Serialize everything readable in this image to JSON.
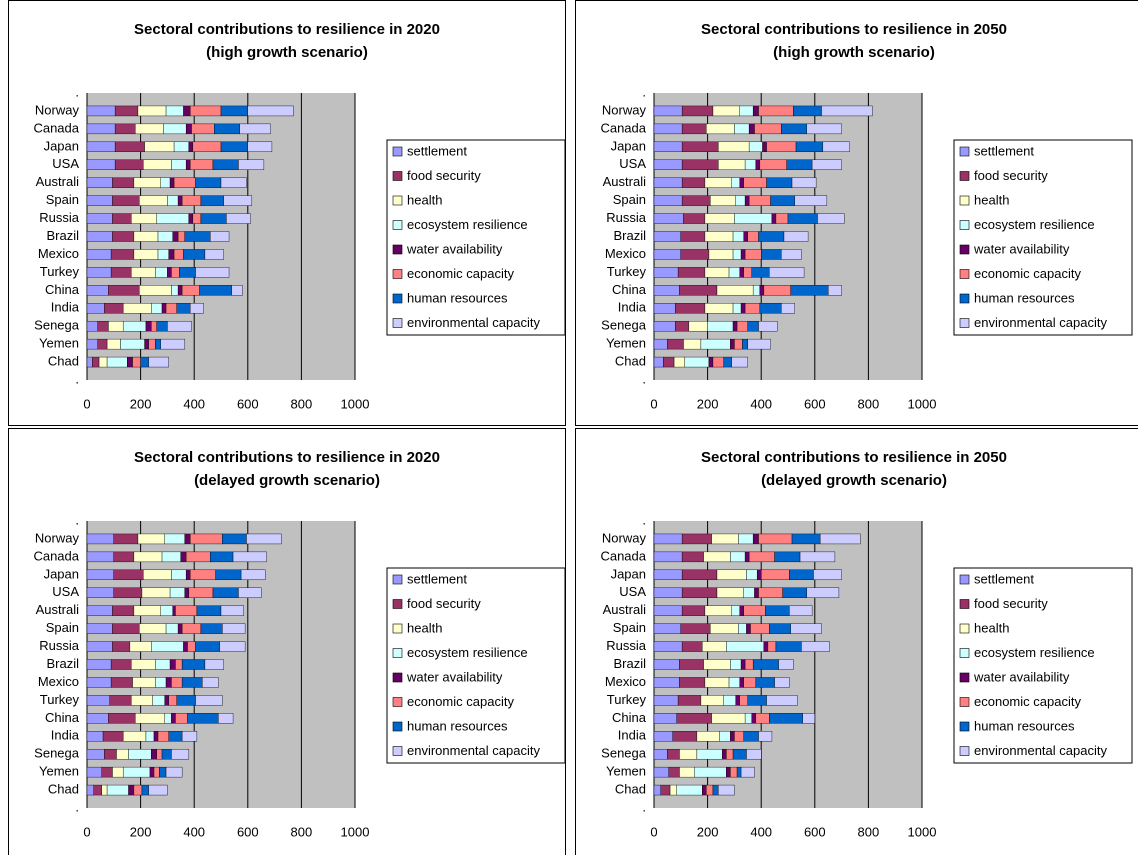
{
  "chart_data": [
    {
      "type": "bar",
      "orientation": "horizontal",
      "stacked": true,
      "title": "Sectoral contributions to resilience in 2020",
      "subtitle": "(high growth scenario)",
      "categories": [
        ".",
        "Norway",
        "Canada",
        "Japan",
        "USA",
        "Australi",
        "Spain",
        "Russia",
        "Brazil",
        "Mexico",
        "Turkey",
        "China",
        "India",
        "Senega",
        "Yemen",
        "Chad",
        "."
      ],
      "xlim": [
        0,
        1000
      ],
      "xticks": [
        0,
        200,
        400,
        600,
        800,
        1000
      ],
      "grid": true,
      "legend": "right",
      "series": [
        {
          "name": "settlement",
          "color": "#9999ff",
          "values": [
            null,
            105,
            105,
            105,
            105,
            95,
            95,
            95,
            95,
            90,
            90,
            80,
            65,
            40,
            40,
            20,
            null
          ]
        },
        {
          "name": "food security",
          "color": "#993366",
          "values": [
            null,
            85,
            75,
            110,
            105,
            80,
            100,
            70,
            80,
            85,
            75,
            115,
            70,
            40,
            35,
            25,
            null
          ]
        },
        {
          "name": "health",
          "color": "#ffffcc",
          "values": [
            null,
            105,
            105,
            110,
            105,
            100,
            105,
            95,
            90,
            90,
            90,
            120,
            105,
            55,
            50,
            30,
            null
          ]
        },
        {
          "name": "ecosystem resilience",
          "color": "#ccffff",
          "values": [
            null,
            65,
            85,
            55,
            55,
            35,
            40,
            120,
            55,
            40,
            45,
            25,
            40,
            85,
            90,
            75,
            null
          ]
        },
        {
          "name": "water availability",
          "color": "#660066",
          "values": [
            null,
            25,
            20,
            15,
            15,
            15,
            15,
            15,
            20,
            20,
            15,
            15,
            15,
            20,
            15,
            20,
            null
          ]
        },
        {
          "name": "economic capacity",
          "color": "#ff8080",
          "values": [
            null,
            115,
            85,
            105,
            85,
            80,
            70,
            30,
            25,
            35,
            30,
            65,
            40,
            20,
            25,
            30,
            null
          ]
        },
        {
          "name": "human resources",
          "color": "#0066cc",
          "values": [
            null,
            100,
            95,
            100,
            95,
            95,
            85,
            95,
            95,
            80,
            60,
            120,
            50,
            40,
            20,
            30,
            null
          ]
        },
        {
          "name": "environmental capacity",
          "color": "#ccccff",
          "values": [
            null,
            170,
            115,
            90,
            95,
            95,
            105,
            90,
            70,
            70,
            125,
            40,
            50,
            90,
            90,
            75,
            null
          ]
        }
      ]
    },
    {
      "type": "bar",
      "orientation": "horizontal",
      "stacked": true,
      "title": "Sectoral contributions to resilience in 2050",
      "subtitle": "(high growth scenario)",
      "categories": [
        ".",
        "Norway",
        "Canada",
        "Japan",
        "USA",
        "Australi",
        "Spain",
        "Russia",
        "Brazil",
        "Mexico",
        "Turkey",
        "China",
        "India",
        "Senega",
        "Yemen",
        "Chad",
        "."
      ],
      "xlim": [
        0,
        1000
      ],
      "xticks": [
        0,
        200,
        400,
        600,
        800,
        1000
      ],
      "grid": true,
      "legend": "right",
      "series": [
        {
          "name": "settlement",
          "color": "#9999ff",
          "values": [
            null,
            105,
            105,
            105,
            105,
            105,
            105,
            110,
            100,
            100,
            90,
            95,
            80,
            80,
            50,
            35,
            null
          ]
        },
        {
          "name": "food security",
          "color": "#993366",
          "values": [
            null,
            115,
            90,
            135,
            135,
            85,
            105,
            80,
            90,
            105,
            100,
            140,
            110,
            50,
            60,
            40,
            null
          ]
        },
        {
          "name": "health",
          "color": "#ffffcc",
          "values": [
            null,
            100,
            105,
            115,
            100,
            100,
            95,
            110,
            105,
            90,
            90,
            135,
            105,
            70,
            65,
            40,
            null
          ]
        },
        {
          "name": "ecosystem resilience",
          "color": "#ccffff",
          "values": [
            null,
            50,
            55,
            50,
            40,
            30,
            35,
            140,
            40,
            30,
            40,
            25,
            30,
            95,
            110,
            90,
            null
          ]
        },
        {
          "name": "water availability",
          "color": "#660066",
          "values": [
            null,
            20,
            20,
            15,
            15,
            15,
            15,
            15,
            15,
            15,
            15,
            15,
            15,
            15,
            15,
            15,
            null
          ]
        },
        {
          "name": "economic capacity",
          "color": "#ff8080",
          "values": [
            null,
            130,
            100,
            110,
            100,
            85,
            80,
            45,
            40,
            60,
            30,
            100,
            55,
            40,
            30,
            40,
            null
          ]
        },
        {
          "name": "human resources",
          "color": "#0066cc",
          "values": [
            null,
            105,
            95,
            100,
            95,
            95,
            90,
            110,
            95,
            75,
            65,
            140,
            80,
            40,
            20,
            30,
            null
          ]
        },
        {
          "name": "environmental capacity",
          "color": "#ccccff",
          "values": [
            null,
            190,
            130,
            100,
            110,
            90,
            120,
            100,
            90,
            75,
            130,
            50,
            50,
            70,
            85,
            60,
            null
          ]
        }
      ]
    },
    {
      "type": "bar",
      "orientation": "horizontal",
      "stacked": true,
      "title": "Sectoral contributions to resilience in 2020",
      "subtitle": "(delayed growth scenario)",
      "categories": [
        ".",
        "Norway",
        "Canada",
        "Japan",
        "USA",
        "Australi",
        "Spain",
        "Russia",
        "Brazil",
        "Mexico",
        "Turkey",
        "China",
        "India",
        "Senega",
        "Yemen",
        "Chad",
        "."
      ],
      "xlim": [
        0,
        1000
      ],
      "xticks": [
        0,
        200,
        400,
        600,
        800,
        1000
      ],
      "grid": true,
      "legend": "right",
      "series": [
        {
          "name": "settlement",
          "color": "#9999ff",
          "values": [
            null,
            100,
            100,
            100,
            100,
            95,
            95,
            95,
            90,
            90,
            85,
            80,
            60,
            65,
            55,
            25,
            null
          ]
        },
        {
          "name": "food security",
          "color": "#993366",
          "values": [
            null,
            90,
            75,
            110,
            105,
            80,
            100,
            65,
            75,
            80,
            80,
            100,
            75,
            45,
            40,
            30,
            null
          ]
        },
        {
          "name": "health",
          "color": "#ffffcc",
          "values": [
            null,
            100,
            105,
            105,
            105,
            100,
            100,
            80,
            90,
            85,
            80,
            110,
            85,
            45,
            40,
            20,
            null
          ]
        },
        {
          "name": "ecosystem resilience",
          "color": "#ccffff",
          "values": [
            null,
            75,
            70,
            55,
            55,
            45,
            45,
            120,
            55,
            40,
            45,
            25,
            30,
            85,
            100,
            80,
            null
          ]
        },
        {
          "name": "water availability",
          "color": "#660066",
          "values": [
            null,
            20,
            20,
            15,
            15,
            10,
            15,
            15,
            20,
            20,
            15,
            15,
            15,
            20,
            15,
            20,
            null
          ]
        },
        {
          "name": "economic capacity",
          "color": "#ff8080",
          "values": [
            null,
            120,
            90,
            95,
            90,
            80,
            70,
            30,
            25,
            40,
            30,
            45,
            40,
            20,
            20,
            30,
            null
          ]
        },
        {
          "name": "human resources",
          "color": "#0066cc",
          "values": [
            null,
            90,
            85,
            95,
            95,
            90,
            80,
            90,
            85,
            75,
            70,
            115,
            50,
            35,
            25,
            25,
            null
          ]
        },
        {
          "name": "environmental capacity",
          "color": "#ccccff",
          "values": [
            null,
            130,
            125,
            90,
            85,
            85,
            85,
            95,
            70,
            60,
            100,
            55,
            55,
            65,
            60,
            70,
            null
          ]
        }
      ]
    },
    {
      "type": "bar",
      "orientation": "horizontal",
      "stacked": true,
      "title": "Sectoral contributions to resilience in 2050",
      "subtitle": "(delayed growth scenario)",
      "categories": [
        ".",
        "Norway",
        "Canada",
        "Japan",
        "USA",
        "Australi",
        "Spain",
        "Russia",
        "Brazil",
        "Mexico",
        "Turkey",
        "China",
        "India",
        "Senega",
        "Yemen",
        "Chad",
        "."
      ],
      "xlim": [
        0,
        1000
      ],
      "xticks": [
        0,
        200,
        400,
        600,
        800,
        1000
      ],
      "grid": true,
      "legend": "right",
      "series": [
        {
          "name": "settlement",
          "color": "#9999ff",
          "values": [
            null,
            105,
            105,
            105,
            105,
            105,
            100,
            105,
            95,
            95,
            90,
            85,
            70,
            50,
            55,
            25,
            null
          ]
        },
        {
          "name": "food security",
          "color": "#993366",
          "values": [
            null,
            110,
            80,
            130,
            130,
            85,
            110,
            75,
            90,
            95,
            85,
            130,
            90,
            45,
            40,
            35,
            null
          ]
        },
        {
          "name": "health",
          "color": "#ffffcc",
          "values": [
            null,
            100,
            100,
            110,
            100,
            100,
            105,
            90,
            100,
            90,
            85,
            125,
            85,
            65,
            55,
            25,
            null
          ]
        },
        {
          "name": "ecosystem resilience",
          "color": "#ccffff",
          "values": [
            null,
            55,
            55,
            40,
            40,
            30,
            30,
            140,
            40,
            40,
            45,
            25,
            40,
            95,
            120,
            95,
            null
          ]
        },
        {
          "name": "water availability",
          "color": "#660066",
          "values": [
            null,
            20,
            15,
            15,
            15,
            15,
            15,
            15,
            15,
            15,
            15,
            15,
            15,
            15,
            15,
            15,
            null
          ]
        },
        {
          "name": "economic capacity",
          "color": "#ff8080",
          "values": [
            null,
            125,
            95,
            105,
            90,
            80,
            70,
            30,
            30,
            45,
            30,
            50,
            35,
            25,
            25,
            25,
            null
          ]
        },
        {
          "name": "human resources",
          "color": "#0066cc",
          "values": [
            null,
            105,
            95,
            90,
            90,
            90,
            80,
            95,
            95,
            70,
            70,
            125,
            55,
            50,
            15,
            20,
            null
          ]
        },
        {
          "name": "environmental capacity",
          "color": "#ccccff",
          "values": [
            null,
            150,
            130,
            105,
            120,
            85,
            115,
            105,
            55,
            55,
            115,
            45,
            50,
            55,
            50,
            60,
            null
          ]
        }
      ]
    }
  ]
}
